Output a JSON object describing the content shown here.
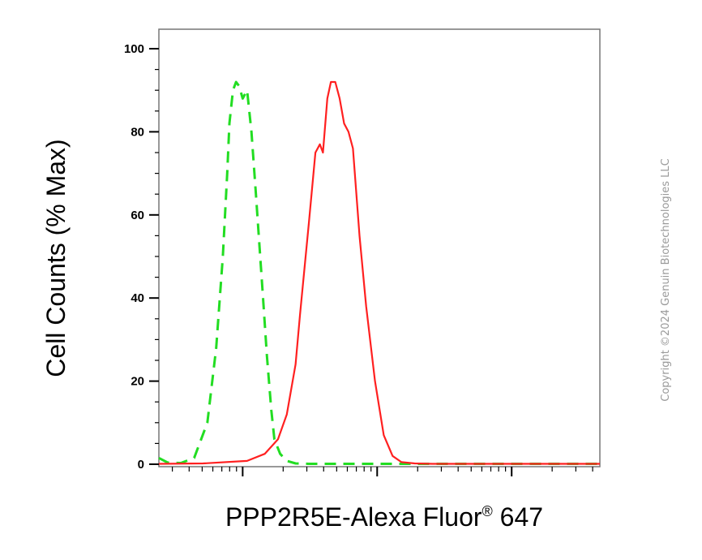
{
  "chart_data": {
    "type": "line",
    "xlabel_main": "PPP2R5E-Alexa Fluor",
    "xlabel_sup": "®",
    "xlabel_tail": " 647",
    "ylabel": "Cell Counts (% Max)",
    "ylim": [
      0,
      100
    ],
    "yticks": [
      0,
      20,
      40,
      60,
      80,
      100
    ],
    "xscale": "log",
    "xlim": [
      0,
      1
    ],
    "grid": false,
    "series": [
      {
        "style": "dashed",
        "color": "#22dd22",
        "x": [
          0.0,
          0.02,
          0.05,
          0.08,
          0.11,
          0.13,
          0.145,
          0.155,
          0.16,
          0.168,
          0.175,
          0.182,
          0.19,
          0.2,
          0.21,
          0.22,
          0.235,
          0.245,
          0.255,
          0.262,
          0.275,
          0.29,
          0.31,
          0.34,
          0.4,
          0.6,
          0.8,
          1.0
        ],
        "y": [
          1.5,
          0.4,
          0.3,
          1.5,
          10,
          28,
          50,
          70,
          82,
          90,
          92,
          91,
          88,
          90,
          80,
          65,
          42,
          26,
          13,
          6,
          2.5,
          0.8,
          0.2,
          0.1,
          0.1,
          0.1,
          0.1,
          0.1
        ]
      },
      {
        "style": "solid",
        "color": "#ff2020",
        "x": [
          0.0,
          0.1,
          0.2,
          0.24,
          0.27,
          0.29,
          0.31,
          0.32,
          0.34,
          0.355,
          0.365,
          0.372,
          0.382,
          0.39,
          0.4,
          0.41,
          0.42,
          0.43,
          0.44,
          0.455,
          0.47,
          0.49,
          0.51,
          0.53,
          0.55,
          0.58,
          0.62,
          0.7,
          0.8,
          1.0
        ],
        "y": [
          0.1,
          0.2,
          0.8,
          2.5,
          6,
          12,
          24,
          36,
          58,
          75,
          77,
          75,
          88,
          92,
          92,
          88,
          82,
          80,
          76,
          55,
          38,
          20,
          7,
          2,
          0.5,
          0.2,
          0.1,
          0.1,
          0.1,
          0.1
        ]
      }
    ]
  },
  "copyright": "Copyright ©2024 Genuin Biotechnologies LLC"
}
